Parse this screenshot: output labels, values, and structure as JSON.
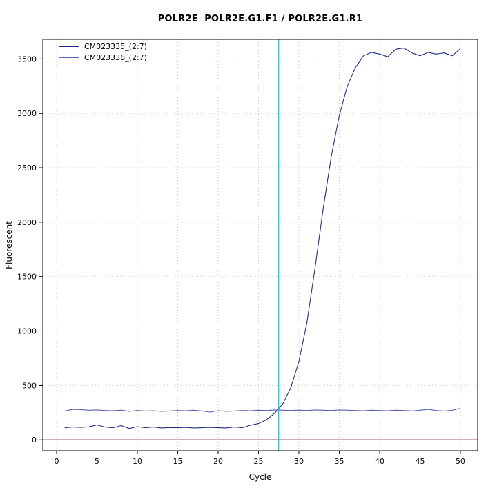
{
  "chart_data": {
    "type": "line",
    "title": "POLR2E  POLR2E.G1.F1 / POLR2E.G1.R1",
    "xlabel": "Cycle",
    "ylabel": "Fluorescent",
    "xlim": [
      -1.7,
      52.1
    ],
    "ylim": [
      -100,
      3680
    ],
    "x_ticks": [
      0,
      5,
      10,
      15,
      20,
      25,
      30,
      35,
      40,
      45,
      50
    ],
    "y_ticks": [
      0,
      500,
      1000,
      1500,
      2000,
      2500,
      3000,
      3500
    ],
    "grid": "dotted",
    "legend_position": "top-left",
    "threshold_cycle_line": {
      "x": 27.5,
      "color": "#00c8c8"
    },
    "baseline_line": {
      "y": 0,
      "color": "#8b2a2a"
    },
    "x": [
      1,
      2,
      3,
      4,
      5,
      6,
      7,
      8,
      9,
      10,
      11,
      12,
      13,
      14,
      15,
      16,
      17,
      18,
      19,
      20,
      21,
      22,
      23,
      24,
      25,
      26,
      27,
      28,
      29,
      30,
      31,
      32,
      33,
      34,
      35,
      36,
      37,
      38,
      39,
      40,
      41,
      42,
      43,
      44,
      45,
      46,
      47,
      48,
      49,
      50
    ],
    "series": [
      {
        "name": "CM023335_(2:7)",
        "color": "#232d86",
        "values": [
          112,
          118,
          115,
          120,
          138,
          118,
          112,
          132,
          105,
          122,
          112,
          118,
          110,
          114,
          112,
          115,
          110,
          112,
          115,
          112,
          110,
          118,
          112,
          135,
          150,
          185,
          245,
          330,
          480,
          720,
          1080,
          1580,
          2120,
          2600,
          2980,
          3250,
          3420,
          3530,
          3560,
          3545,
          3520,
          3590,
          3600,
          3555,
          3530,
          3560,
          3545,
          3555,
          3530,
          3595
        ]
      },
      {
        "name": "CM023336_(2:7)",
        "color": "#5c62b2",
        "values": [
          265,
          280,
          278,
          272,
          275,
          270,
          268,
          273,
          262,
          270,
          265,
          268,
          262,
          265,
          270,
          268,
          272,
          265,
          255,
          268,
          262,
          265,
          270,
          268,
          272,
          270,
          275,
          272,
          270,
          273,
          270,
          275,
          272,
          270,
          275,
          272,
          270,
          268,
          272,
          270,
          268,
          272,
          270,
          266,
          272,
          280,
          270,
          265,
          272,
          290
        ]
      }
    ]
  }
}
